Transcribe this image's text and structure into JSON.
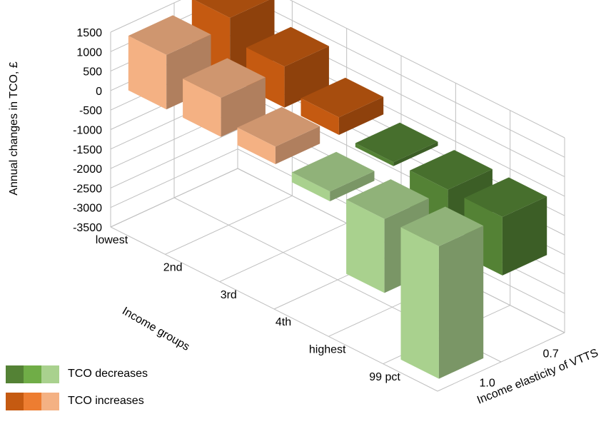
{
  "chart_data": {
    "type": "bar",
    "subtype": "3d-bar",
    "ylabel": "Annual changes in TCO, £",
    "xlabel": "Income groups",
    "zlabel": "Income elasticity of VTTS",
    "yticks": [
      "1500",
      "1000",
      "500",
      "0",
      "-500",
      "-1000",
      "-1500",
      "-2000",
      "-2500",
      "-3000",
      "-3500"
    ],
    "ylim": [
      -3500,
      1500
    ],
    "categories": [
      "lowest",
      "2nd",
      "3rd",
      "4th",
      "highest",
      "99 pct"
    ],
    "elasticities": [
      "1.0",
      "0.7"
    ],
    "series": [
      {
        "name": "1.0",
        "values": [
          1400,
          1000,
          450,
          -250,
          -1900,
          -3400
        ]
      },
      {
        "name": "0.7",
        "values": [
          1600,
          1050,
          450,
          -100,
          -1100,
          -1500
        ]
      }
    ],
    "colors": {
      "increase_front": "#f4b183",
      "increase_back": "#c55a11",
      "decrease_front": "#a9d18e",
      "decrease_back": "#548235"
    },
    "legend": {
      "position": "bottom-left",
      "items": [
        {
          "label": "TCO decreases",
          "colors": [
            "#548235",
            "#70ad47",
            "#a9d18e"
          ]
        },
        {
          "label": "TCO increases",
          "colors": [
            "#c55a11",
            "#ed7d31",
            "#f4b183"
          ]
        }
      ]
    },
    "grid": true
  }
}
